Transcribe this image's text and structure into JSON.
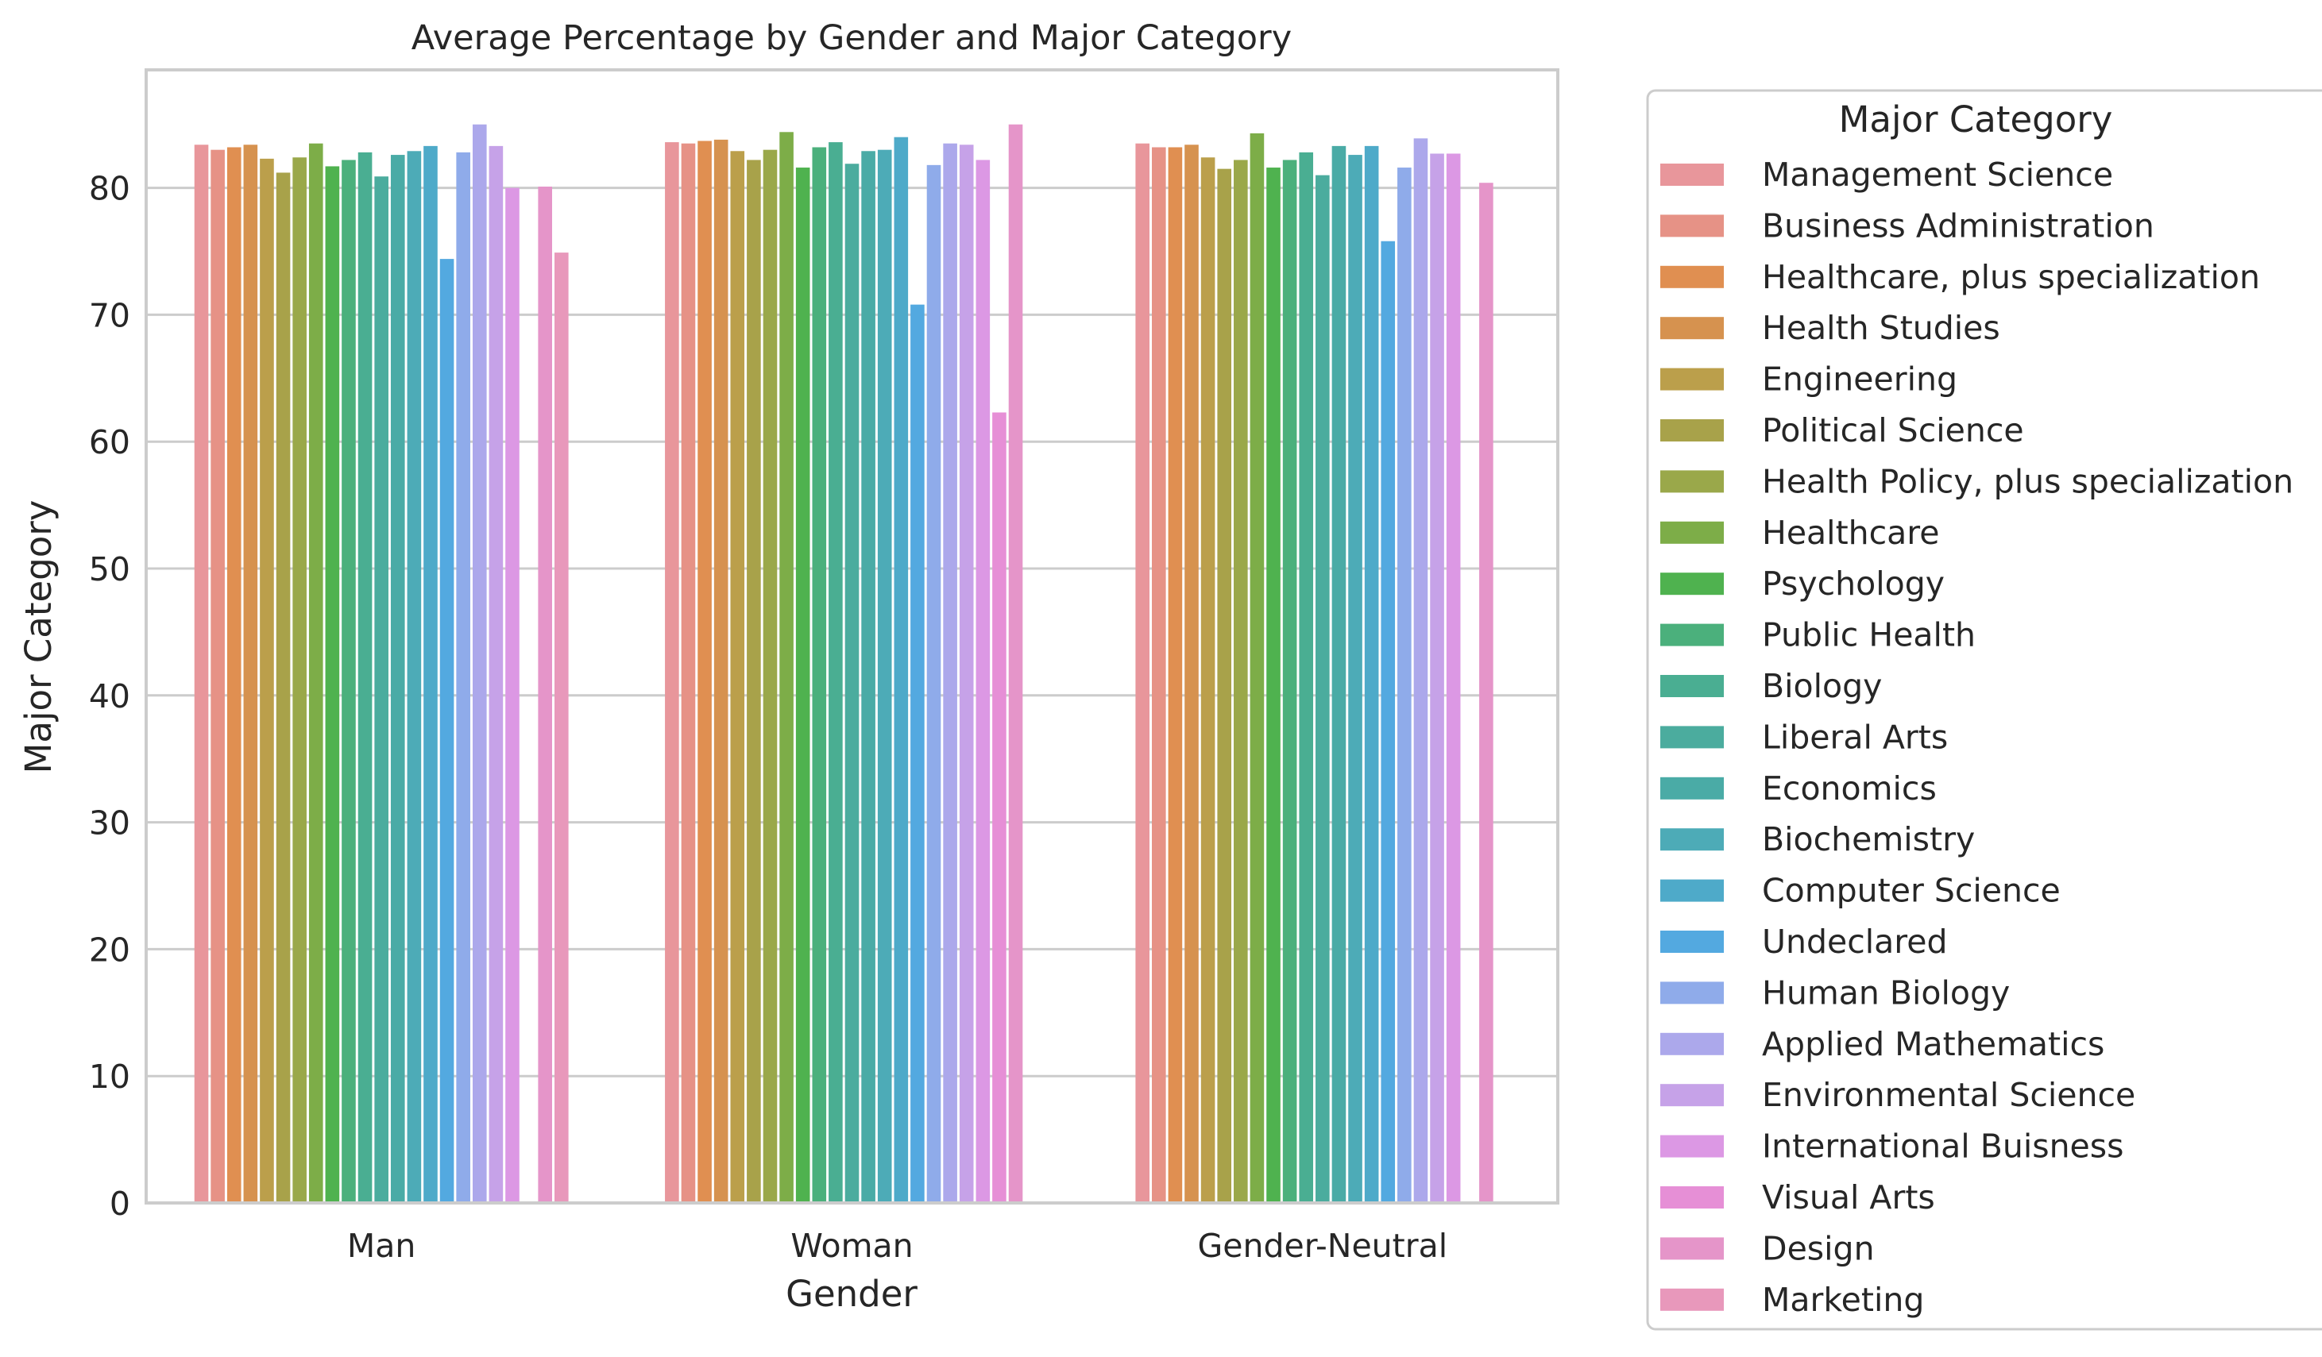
{
  "chart_data": {
    "type": "bar",
    "title": "Average Percentage by Gender and Major Category",
    "xlabel": "Gender",
    "ylabel": "Major Category",
    "categories": [
      "Man",
      "Woman",
      "Gender-Neutral"
    ],
    "ylim": [
      0,
      89.3
    ],
    "yticks": [
      0,
      10,
      20,
      30,
      40,
      50,
      60,
      70,
      80
    ],
    "grid": "y",
    "legend": {
      "title": "Major Category",
      "placement": "outside-right"
    },
    "series": [
      {
        "name": "Management Science",
        "color": "#e8969b",
        "values": [
          83.4,
          83.6,
          83.5
        ]
      },
      {
        "name": "Business Administration",
        "color": "#e69286",
        "values": [
          83.0,
          83.5,
          83.2
        ]
      },
      {
        "name": "Healthcare, plus specialization",
        "color": "#e08f51",
        "values": [
          83.2,
          83.7,
          83.2
        ]
      },
      {
        "name": "Health Studies",
        "color": "#d6924f",
        "values": [
          83.4,
          83.8,
          83.4
        ]
      },
      {
        "name": "Engineering",
        "color": "#bb9f4b",
        "values": [
          82.3,
          82.9,
          82.4
        ]
      },
      {
        "name": "Political Science",
        "color": "#a8a24a",
        "values": [
          81.2,
          82.2,
          81.5
        ]
      },
      {
        "name": "Health Policy, plus specialization",
        "color": "#9aa84a",
        "values": [
          82.4,
          83.0,
          82.2
        ]
      },
      {
        "name": "Healthcare",
        "color": "#7dad48",
        "values": [
          83.5,
          84.4,
          84.3
        ]
      },
      {
        "name": "Psychology",
        "color": "#4fb24f",
        "values": [
          81.7,
          81.6,
          81.6
        ]
      },
      {
        "name": "Public Health",
        "color": "#4bb07c",
        "values": [
          82.2,
          83.2,
          82.2
        ]
      },
      {
        "name": "Biology",
        "color": "#4aae92",
        "values": [
          82.8,
          83.6,
          82.8
        ]
      },
      {
        "name": "Liberal Arts",
        "color": "#4bac9e",
        "values": [
          80.9,
          81.9,
          81.0
        ]
      },
      {
        "name": "Economics",
        "color": "#4aaba6",
        "values": [
          82.6,
          82.9,
          83.3
        ]
      },
      {
        "name": "Biochemistry",
        "color": "#4dabb7",
        "values": [
          82.9,
          83.0,
          82.6
        ]
      },
      {
        "name": "Computer Science",
        "color": "#4eaac9",
        "values": [
          83.3,
          84.0,
          83.3
        ]
      },
      {
        "name": "Undeclared",
        "color": "#53a9e0",
        "values": [
          74.4,
          70.8,
          75.8
        ]
      },
      {
        "name": "Human Biology",
        "color": "#8fabea",
        "values": [
          82.8,
          81.8,
          81.6
        ]
      },
      {
        "name": "Applied Mathematics",
        "color": "#aca8eb",
        "values": [
          85.0,
          83.5,
          83.9
        ]
      },
      {
        "name": "Environmental Science",
        "color": "#c6a2e8",
        "values": [
          83.3,
          83.4,
          82.7
        ]
      },
      {
        "name": "International Buisness",
        "color": "#dc98e4",
        "values": [
          80.0,
          82.2,
          82.7
        ]
      },
      {
        "name": "Visual Arts",
        "color": "#e68fd6",
        "values": [
          null,
          62.3,
          null
        ]
      },
      {
        "name": "Design",
        "color": "#e595c9",
        "values": [
          80.1,
          85.0,
          80.4
        ]
      },
      {
        "name": "Marketing",
        "color": "#e898bb",
        "values": [
          74.9,
          null,
          null
        ]
      }
    ]
  }
}
